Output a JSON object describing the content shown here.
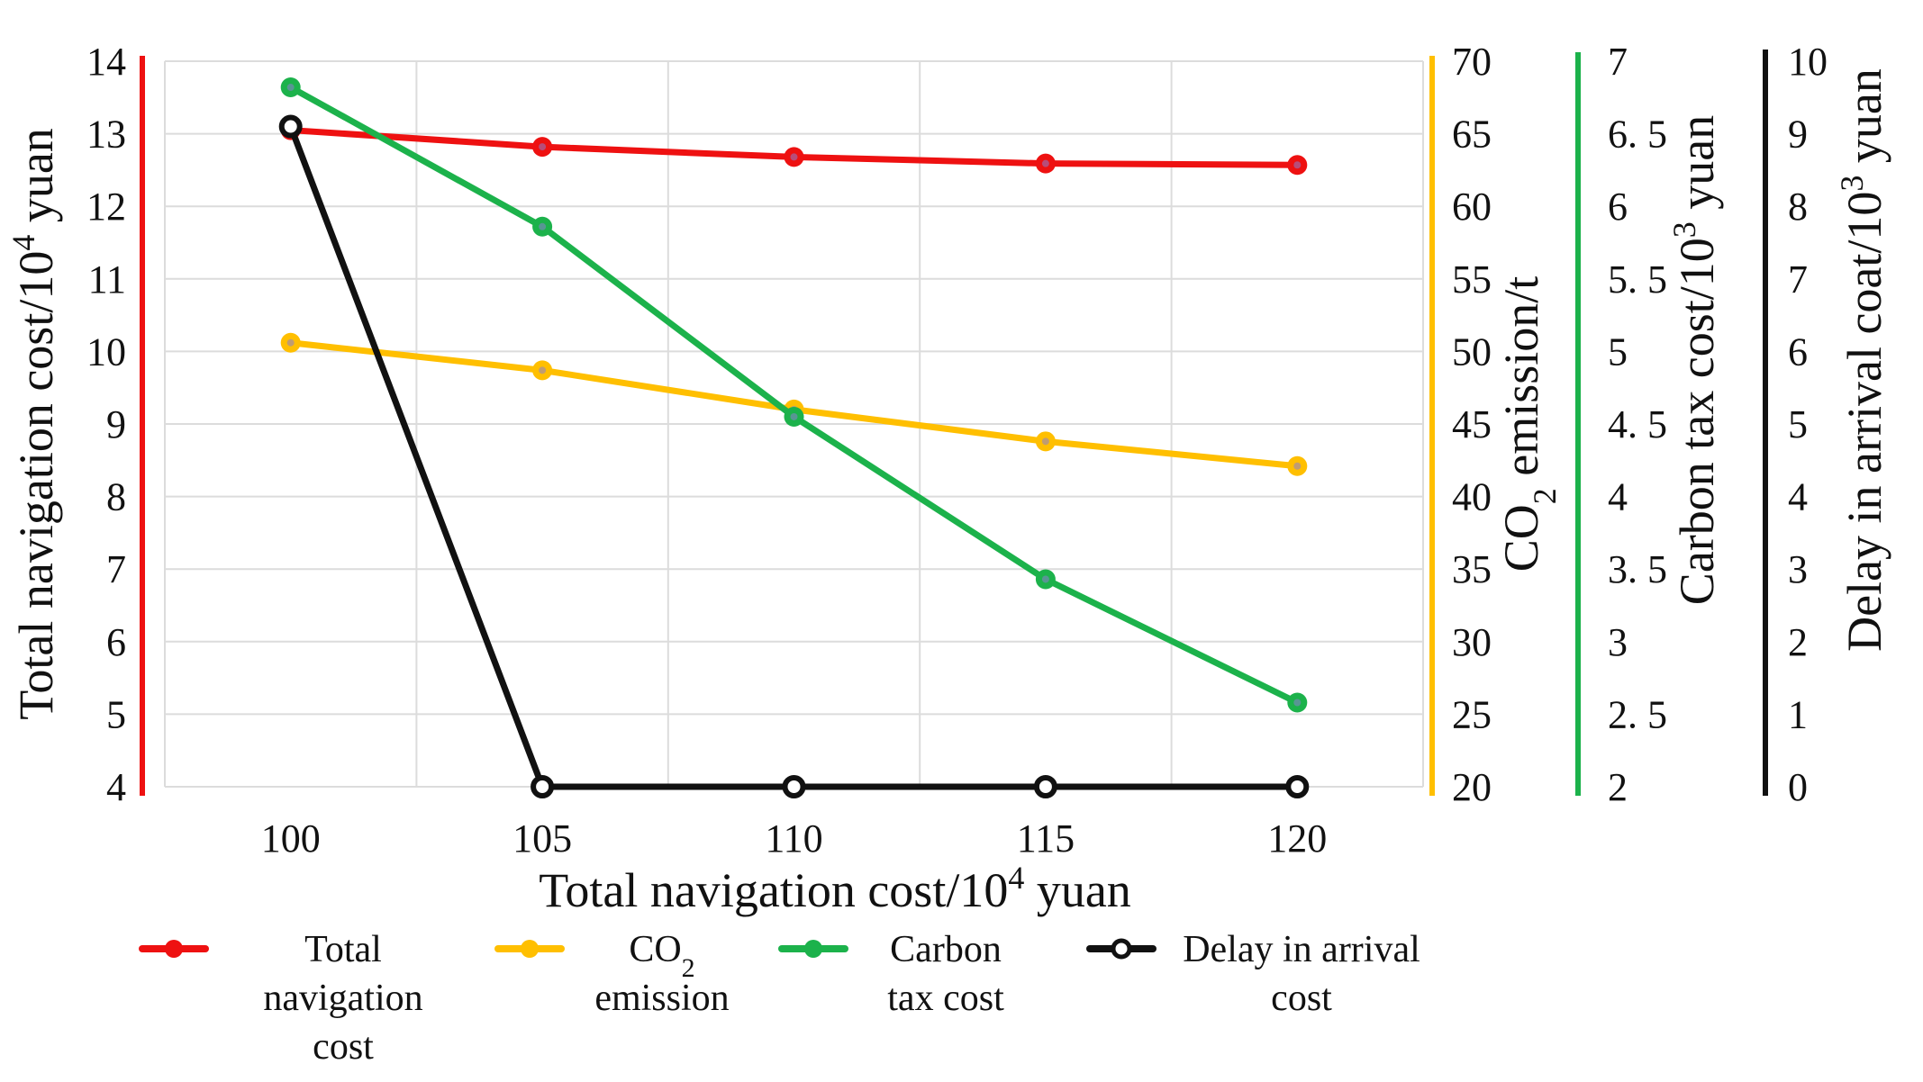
{
  "chart_data": {
    "type": "line",
    "title": "",
    "x": [
      100,
      105,
      110,
      115,
      120
    ],
    "x_tick_labels": [
      "100",
      "105",
      "110",
      "115",
      "120"
    ],
    "xlabel": {
      "text": "Total navigation cost/10",
      "sup": "4",
      "suffix": " yuan"
    },
    "grid": true,
    "legend_position": "bottom",
    "axes": [
      {
        "id": "nav",
        "side": "left",
        "color": "#ee1111",
        "range": [
          4,
          14
        ],
        "ticks": [
          "4",
          "5",
          "6",
          "7",
          "8",
          "9",
          "10",
          "11",
          "12",
          "13",
          "14"
        ],
        "label": {
          "text": "Total navigation cost/10",
          "sup": "4",
          "suffix": " yuan"
        }
      },
      {
        "id": "co2",
        "side": "right",
        "color": "#ffbf00",
        "range": [
          20,
          70
        ],
        "ticks": [
          "20",
          "25",
          "30",
          "35",
          "40",
          "45",
          "50",
          "55",
          "60",
          "65",
          "70"
        ],
        "label": {
          "pre": "CO",
          "sub": "2",
          "text": " emission/t"
        }
      },
      {
        "id": "tax",
        "side": "right",
        "color": "#1cb24b",
        "range": [
          2,
          7
        ],
        "ticks": [
          "2",
          "2. 5",
          "3",
          "3. 5",
          "4",
          "4. 5",
          "5",
          "5. 5",
          "6",
          "6. 5",
          "7"
        ],
        "label": {
          "text": "Carbon tax cost/10",
          "sup": "3",
          "suffix": " yuan"
        }
      },
      {
        "id": "delay",
        "side": "right",
        "color": "#111111",
        "range": [
          0,
          10
        ],
        "ticks": [
          "0",
          "1",
          "2",
          "3",
          "4",
          "5",
          "6",
          "7",
          "8",
          "9",
          "10"
        ],
        "label": {
          "text": "Delay in arrival coat/10",
          "sup": "3",
          "suffix": " yuan"
        }
      }
    ],
    "series": [
      {
        "name": "Total navigation cost",
        "axis": "nav",
        "color": "#ee1111",
        "values": [
          13.05,
          12.82,
          12.68,
          12.59,
          12.57
        ]
      },
      {
        "name": "CO2 emission",
        "axis": "co2",
        "color": "#ffbf00",
        "values": [
          50.6,
          48.7,
          46.0,
          43.8,
          42.1
        ]
      },
      {
        "name": "Carbon tax cost",
        "axis": "tax",
        "color": "#1cb24b",
        "values": [
          6.82,
          5.86,
          4.55,
          3.43,
          2.58
        ]
      },
      {
        "name": "Delay in arrival cost",
        "axis": "delay",
        "color": "#111111",
        "values": [
          9.1,
          0,
          0,
          0,
          0
        ]
      }
    ],
    "legend": [
      {
        "series": "Total navigation cost",
        "lines": [
          "Total",
          "navigation",
          "cost"
        ]
      },
      {
        "series": "CO2 emission",
        "lines": [
          "CO|2",
          "emission"
        ]
      },
      {
        "series": "Carbon tax cost",
        "lines": [
          "Carbon",
          "tax cost"
        ]
      },
      {
        "series": "Delay in arrival cost",
        "lines": [
          "Delay in arrival",
          "cost"
        ]
      }
    ]
  }
}
